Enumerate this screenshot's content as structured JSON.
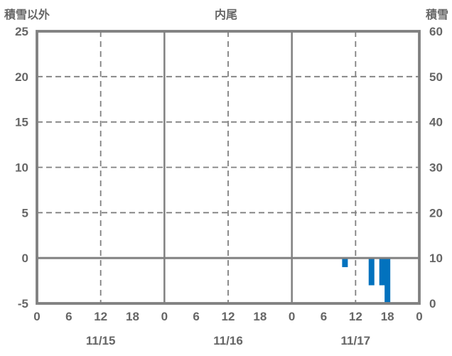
{
  "header": {
    "left_axis_title": "積雪以外",
    "station_title": "内尾",
    "right_axis_title": "積雪"
  },
  "chart_data": {
    "type": "bar",
    "title": "内尾",
    "left_axis": {
      "label": "積雪以外",
      "min": -5,
      "max": 25,
      "ticks": [
        25,
        20,
        15,
        10,
        5,
        0,
        -5
      ]
    },
    "right_axis": {
      "label": "積雪",
      "min": 0,
      "max": 60,
      "ticks": [
        60,
        50,
        40,
        30,
        20,
        10,
        0
      ]
    },
    "x_axis": {
      "unit": "hour",
      "total_hours": 72,
      "tick_step_hours": 6,
      "hour_tick_labels": [
        "0",
        "6",
        "12",
        "18",
        "0",
        "6",
        "12",
        "18",
        "0",
        "6",
        "12",
        "18",
        "0"
      ],
      "date_labels": [
        "11/15",
        "11/16",
        "11/17"
      ]
    },
    "gridlines": {
      "horizontal_dashed_values": [
        20,
        15,
        10,
        5
      ],
      "horizontal_solid_values": [
        0
      ],
      "vertical_dashed_hours": [
        12,
        36,
        60
      ],
      "vertical_solid_hours": [
        24,
        48
      ]
    },
    "bars": [
      {
        "date": "11/17",
        "hour": 10,
        "value": -1
      },
      {
        "date": "11/17",
        "hour": 15,
        "value": -3
      },
      {
        "date": "11/17",
        "hour": 17,
        "value": -3
      },
      {
        "date": "11/17",
        "hour": 18,
        "value": -5
      }
    ],
    "colors": {
      "bar": "#0272BE",
      "line": "#808080",
      "text": "#666666",
      "background": "#ffffff"
    }
  }
}
